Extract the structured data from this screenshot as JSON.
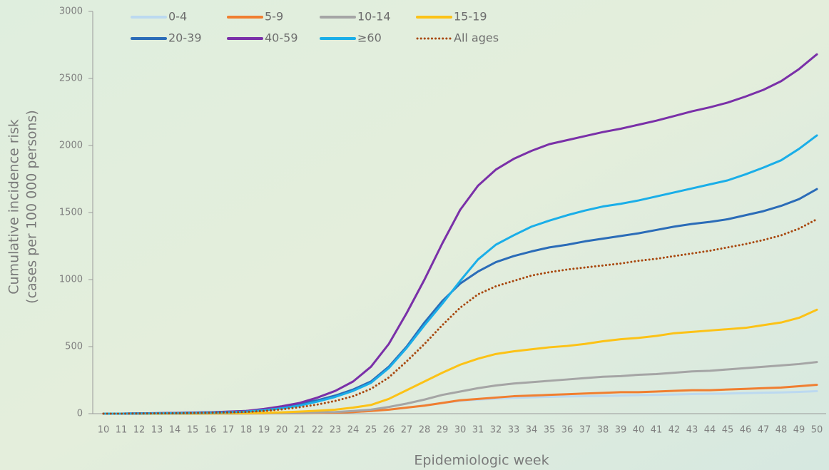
{
  "chart_data": {
    "type": "line",
    "x_label": "Epidemiologic week",
    "y_label": [
      "Cumulative incidence risk",
      "(cases per 100 000 persons)"
    ],
    "x": [
      10,
      11,
      12,
      13,
      14,
      15,
      16,
      17,
      18,
      19,
      20,
      21,
      22,
      23,
      24,
      25,
      26,
      27,
      28,
      29,
      30,
      31,
      32,
      33,
      34,
      35,
      36,
      37,
      38,
      39,
      40,
      41,
      42,
      43,
      44,
      45,
      46,
      47,
      48,
      49,
      50
    ],
    "xlim": [
      10,
      50
    ],
    "ylim": [
      0,
      3000
    ],
    "yticks": [
      0,
      500,
      1000,
      1500,
      2000,
      2500,
      3000
    ],
    "series": [
      {
        "name": "0-4",
        "color": "#bcd9f0",
        "values": [
          0,
          0,
          0,
          0,
          0,
          0,
          0,
          1,
          1,
          2,
          3,
          4,
          6,
          9,
          13,
          20,
          30,
          45,
          62,
          80,
          95,
          105,
          112,
          118,
          122,
          125,
          128,
          130,
          132,
          135,
          138,
          140,
          143,
          146,
          148,
          150,
          153,
          156,
          158,
          162,
          168
        ]
      },
      {
        "name": "5-9",
        "color": "#f07e30",
        "values": [
          0,
          0,
          0,
          0,
          0,
          0,
          1,
          1,
          1,
          2,
          3,
          4,
          6,
          8,
          12,
          20,
          30,
          45,
          60,
          80,
          100,
          110,
          120,
          130,
          135,
          140,
          145,
          150,
          155,
          160,
          160,
          165,
          170,
          175,
          175,
          180,
          185,
          190,
          195,
          205,
          215
        ]
      },
      {
        "name": "10-14",
        "color": "#a5a5a5",
        "values": [
          0,
          0,
          0,
          0,
          0,
          1,
          1,
          1,
          2,
          3,
          4,
          6,
          9,
          12,
          20,
          30,
          50,
          75,
          105,
          140,
          165,
          190,
          210,
          225,
          235,
          245,
          255,
          265,
          275,
          280,
          290,
          295,
          305,
          315,
          320,
          330,
          340,
          350,
          360,
          370,
          385
        ]
      },
      {
        "name": "15-19",
        "color": "#fcc216",
        "values": [
          0,
          0,
          0,
          0,
          1,
          1,
          2,
          3,
          4,
          6,
          10,
          15,
          22,
          30,
          45,
          65,
          110,
          175,
          240,
          305,
          365,
          410,
          445,
          465,
          480,
          495,
          505,
          520,
          540,
          555,
          565,
          580,
          600,
          610,
          620,
          630,
          640,
          660,
          680,
          715,
          775
        ]
      },
      {
        "name": "20-39",
        "color": "#2b6cb8",
        "values": [
          0,
          0,
          2,
          3,
          5,
          7,
          10,
          14,
          20,
          30,
          50,
          75,
          100,
          135,
          180,
          240,
          350,
          500,
          680,
          840,
          970,
          1060,
          1130,
          1175,
          1210,
          1240,
          1260,
          1285,
          1305,
          1325,
          1345,
          1370,
          1395,
          1415,
          1430,
          1450,
          1480,
          1510,
          1550,
          1600,
          1675
        ]
      },
      {
        "name": "40-59",
        "color": "#7a30a8",
        "values": [
          0,
          0,
          2,
          3,
          5,
          8,
          10,
          15,
          20,
          35,
          55,
          80,
          120,
          170,
          240,
          350,
          520,
          750,
          1000,
          1270,
          1520,
          1700,
          1820,
          1900,
          1960,
          2010,
          2040,
          2070,
          2100,
          2125,
          2155,
          2185,
          2220,
          2255,
          2285,
          2320,
          2365,
          2415,
          2480,
          2570,
          2680
        ]
      },
      {
        "name": "≥60",
        "color": "#1aaee8",
        "values": [
          0,
          0,
          1,
          2,
          3,
          5,
          7,
          10,
          15,
          25,
          40,
          60,
          90,
          125,
          170,
          230,
          340,
          490,
          660,
          820,
          990,
          1150,
          1260,
          1330,
          1395,
          1440,
          1480,
          1515,
          1545,
          1565,
          1590,
          1620,
          1650,
          1680,
          1710,
          1740,
          1785,
          1835,
          1890,
          1975,
          2075
        ]
      },
      {
        "name": "All ages",
        "color": "#a8480f",
        "dotted": true,
        "values": [
          0,
          0,
          1,
          2,
          3,
          5,
          7,
          9,
          13,
          20,
          32,
          48,
          68,
          95,
          130,
          185,
          270,
          390,
          520,
          660,
          790,
          890,
          950,
          990,
          1030,
          1055,
          1075,
          1090,
          1105,
          1120,
          1140,
          1155,
          1175,
          1195,
          1215,
          1240,
          1265,
          1295,
          1330,
          1380,
          1450
        ]
      }
    ]
  }
}
